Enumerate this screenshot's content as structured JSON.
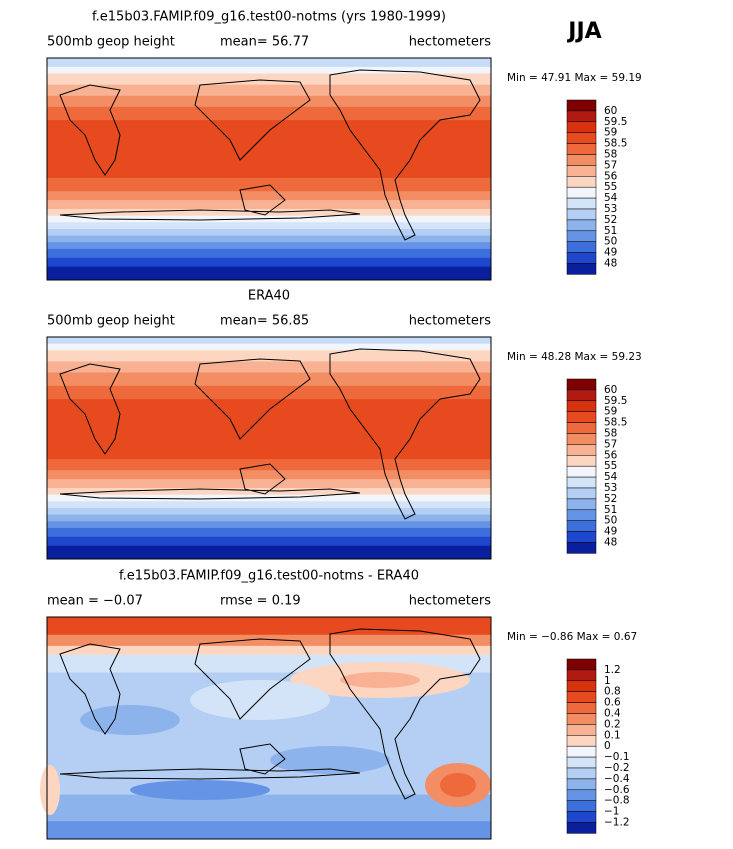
{
  "season": "JJA",
  "panels": [
    {
      "title": "f.e15b03.FAMIP.f09_g16.test00-notms (yrs 1980-1999)",
      "left_label": "500mb geop height",
      "center_label": "mean=  56.77",
      "right_label": "hectometers",
      "min_max": "Min =  47.91 Max =  59.19",
      "colorbar": [
        "60",
        "59.5",
        "59",
        "58.5",
        "58",
        "57",
        "56",
        "55",
        "54",
        "53",
        "52",
        "51",
        "50",
        "49",
        "48"
      ]
    },
    {
      "title": "ERA40",
      "left_label": "500mb geop height",
      "center_label": "mean=  56.85",
      "right_label": "hectometers",
      "min_max": "Min =  48.28 Max =  59.23",
      "colorbar": [
        "60",
        "59.5",
        "59",
        "58.5",
        "58",
        "57",
        "56",
        "55",
        "54",
        "53",
        "52",
        "51",
        "50",
        "49",
        "48"
      ]
    },
    {
      "title": "f.e15b03.FAMIP.f09_g16.test00-notms - ERA40",
      "left_label": "mean =  −0.07",
      "center_label": "rmse =   0.19",
      "right_label": "hectometers",
      "min_max": "Min =  −0.86 Max =   0.67",
      "colorbar": [
        "1.2",
        "1",
        "0.8",
        "0.6",
        "0.4",
        "0.2",
        "0.1",
        "0",
        "−0.1",
        "−0.2",
        "−0.4",
        "−0.6",
        "−0.8",
        "−1",
        "−1.2"
      ]
    }
  ],
  "colorbar_colors": [
    "#7f0000",
    "#b01a10",
    "#d8330f",
    "#e64a1e",
    "#ee6a3c",
    "#f38d63",
    "#f8b293",
    "#fcd6c1",
    "#f2f6fc",
    "#d4e4f8",
    "#b4cff3",
    "#8db3ec",
    "#6593e5",
    "#3d6fdc",
    "#1e47cd",
    "#0a1f9e"
  ]
}
